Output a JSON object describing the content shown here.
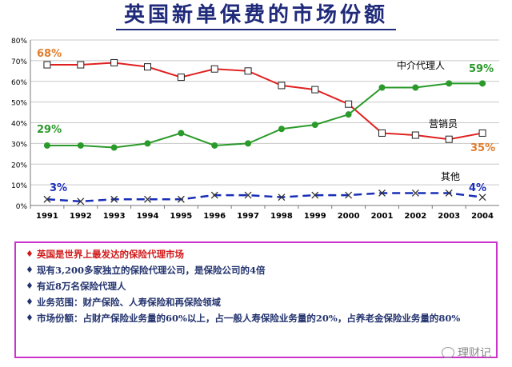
{
  "title": "英国新单保费的市场份额",
  "chart_data": {
    "type": "line",
    "x": [
      "1991",
      "1992",
      "1993",
      "1994",
      "1995",
      "1996",
      "1997",
      "1998",
      "1999",
      "2000",
      "2001",
      "2002",
      "2003",
      "2004"
    ],
    "ylim": [
      0,
      80
    ],
    "yticks": [
      "0%",
      "10%",
      "20%",
      "30%",
      "40%",
      "50%",
      "60%",
      "70%",
      "80%"
    ],
    "grid": "horizontal",
    "series": [
      {
        "name": "中介代理人",
        "color": "#e02020",
        "marker": "square",
        "values": [
          68,
          68,
          69,
          67,
          62,
          66,
          65,
          58,
          56,
          49,
          35,
          34,
          32,
          35
        ],
        "start_label": "68%",
        "end_label": "35%"
      },
      {
        "name": "营销员",
        "color": "#2a9a2a",
        "marker": "circle",
        "values": [
          29,
          29,
          28,
          30,
          35,
          29,
          30,
          37,
          39,
          44,
          57,
          57,
          59,
          59
        ],
        "start_label": "29%",
        "end_label": "59%"
      },
      {
        "name": "其他",
        "color": "#1a2fb8",
        "marker": "x",
        "dashed": true,
        "values": [
          3,
          2,
          3,
          3,
          3,
          5,
          5,
          4,
          5,
          5,
          6,
          6,
          6,
          4
        ],
        "start_label": "3%",
        "end_label": "4%"
      }
    ],
    "labels": {
      "series1_name": "中介代理人",
      "series2_name": "营销员",
      "series3_name": "其他",
      "red_start": "68%",
      "red_end": "35%",
      "green_start": "29%",
      "green_end": "59%",
      "blue_start": "3%",
      "blue_end": "4%"
    }
  },
  "notes": [
    "英国是世界上最发达的保险代理市场",
    "现有3,200多家独立的保险代理公司，是保险公司的4倍",
    "有近8万名保险代理人",
    "业务范围：财产保险、人寿保险和再保险领域",
    "市场份额：占财产保险业务量的60%以上，占一般人寿保险业务量的20%，占养老金保险业务量的80%"
  ],
  "bullet": "♦",
  "watermark": "理财记"
}
